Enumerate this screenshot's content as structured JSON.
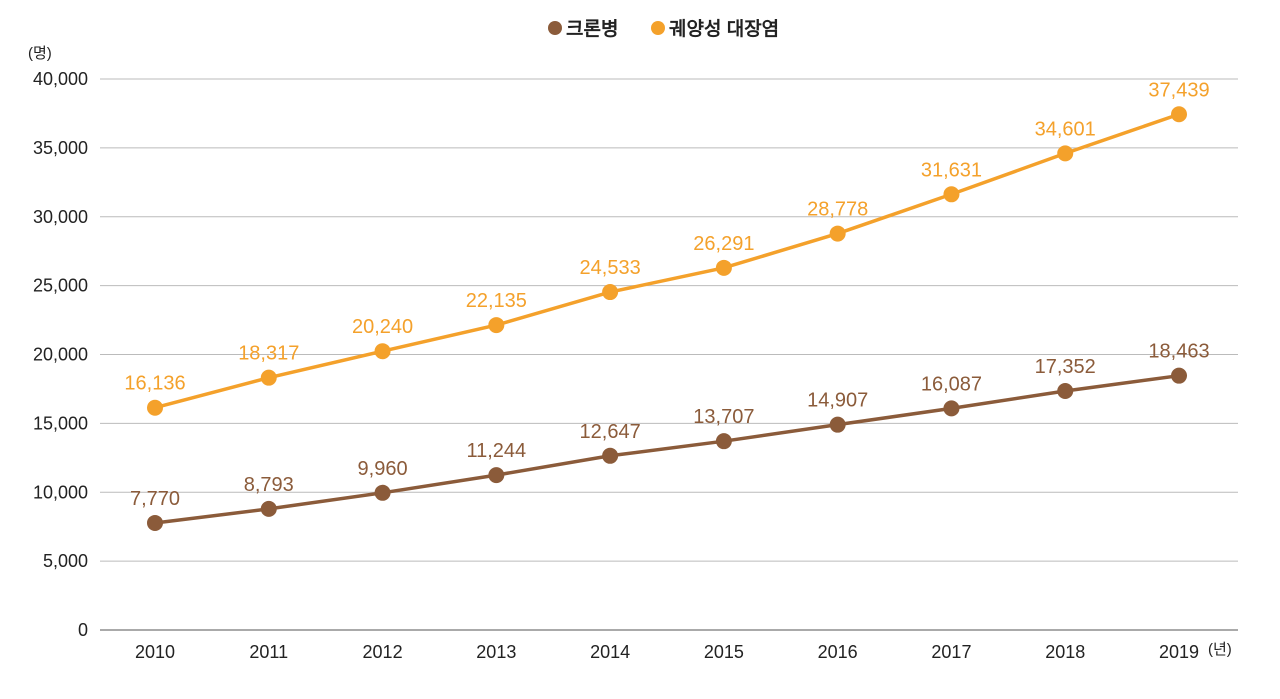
{
  "chart_data": {
    "type": "line",
    "title": "",
    "ylabel": "(명)",
    "xlabel": "(년)",
    "ylim": [
      0,
      40000
    ],
    "yticks": [
      "0",
      "5,000",
      "10,000",
      "15,000",
      "20,000",
      "25,000",
      "30,000",
      "35,000",
      "40,000"
    ],
    "grid": true,
    "legend_position": "top-center",
    "categories": [
      "2010",
      "2011",
      "2012",
      "2013",
      "2014",
      "2015",
      "2016",
      "2017",
      "2018",
      "2019"
    ],
    "series": [
      {
        "name": "크론병",
        "color": "#8B5B3A",
        "values": [
          7770,
          8793,
          9960,
          11244,
          12647,
          13707,
          14907,
          16087,
          17352,
          18463
        ],
        "labels": [
          "7,770",
          "8,793",
          "9,960",
          "11,244",
          "12,647",
          "13,707",
          "14,907",
          "16,087",
          "17,352",
          "18,463"
        ]
      },
      {
        "name": "궤양성 대장염",
        "color": "#F4A12B",
        "values": [
          16136,
          18317,
          20240,
          22135,
          24533,
          26291,
          28778,
          31631,
          34601,
          37439
        ],
        "labels": [
          "16,136",
          "18,317",
          "20,240",
          "22,135",
          "24,533",
          "26,291",
          "28,778",
          "31,631",
          "34,601",
          "37,439"
        ]
      }
    ]
  }
}
